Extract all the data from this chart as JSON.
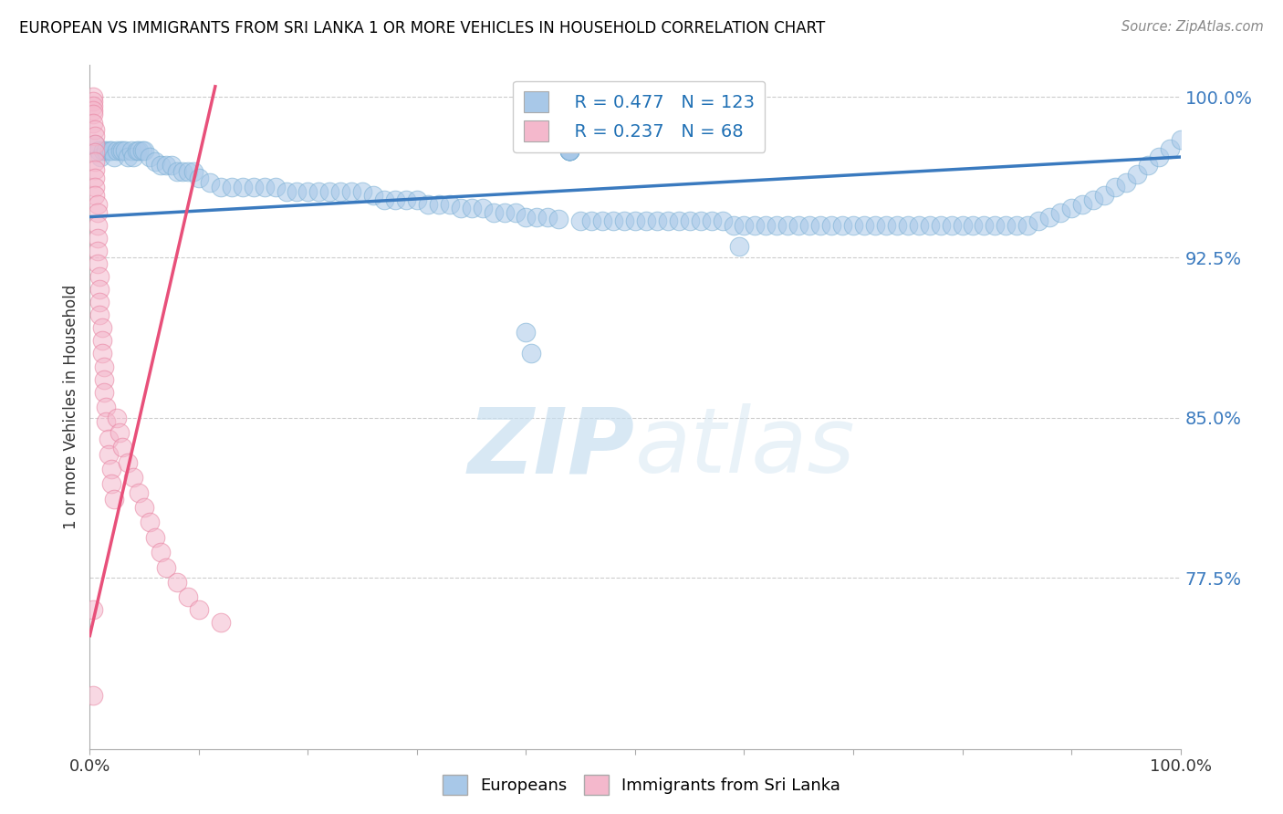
{
  "title": "EUROPEAN VS IMMIGRANTS FROM SRI LANKA 1 OR MORE VEHICLES IN HOUSEHOLD CORRELATION CHART",
  "source": "Source: ZipAtlas.com",
  "ylabel": "1 or more Vehicles in Household",
  "xlim": [
    0.0,
    1.0
  ],
  "ylim": [
    0.695,
    1.015
  ],
  "yticks": [
    0.775,
    0.85,
    0.925,
    1.0
  ],
  "ytick_labels": [
    "77.5%",
    "85.0%",
    "92.5%",
    "100.0%"
  ],
  "xtick_positions": [
    0.0,
    0.1,
    0.2,
    0.3,
    0.4,
    0.5,
    0.6,
    0.7,
    0.8,
    0.9,
    1.0
  ],
  "xtick_labels": [
    "0.0%",
    "",
    "",
    "",
    "",
    "",
    "",
    "",
    "",
    "",
    "100.0%"
  ],
  "legend_blue_r": "R = 0.477",
  "legend_blue_n": "N = 123",
  "legend_pink_r": "R = 0.237",
  "legend_pink_n": "N = 68",
  "legend_label_blue": "Europeans",
  "legend_label_pink": "Immigrants from Sri Lanka",
  "watermark_zip": "ZIP",
  "watermark_atlas": "atlas",
  "blue_color": "#a8c8e8",
  "blue_edge_color": "#7aafd4",
  "pink_color": "#f4b8cc",
  "pink_edge_color": "#e882a0",
  "blue_line_color": "#3a7abf",
  "pink_line_color": "#e8507a",
  "blue_scatter_x": [
    0.005,
    0.008,
    0.01,
    0.012,
    0.015,
    0.018,
    0.02,
    0.022,
    0.025,
    0.028,
    0.03,
    0.032,
    0.035,
    0.038,
    0.04,
    0.043,
    0.045,
    0.048,
    0.05,
    0.055,
    0.06,
    0.065,
    0.07,
    0.075,
    0.08,
    0.085,
    0.09,
    0.095,
    0.1,
    0.11,
    0.12,
    0.13,
    0.14,
    0.15,
    0.16,
    0.17,
    0.18,
    0.19,
    0.2,
    0.21,
    0.22,
    0.23,
    0.24,
    0.25,
    0.26,
    0.27,
    0.28,
    0.29,
    0.3,
    0.31,
    0.32,
    0.33,
    0.34,
    0.35,
    0.36,
    0.37,
    0.38,
    0.39,
    0.4,
    0.41,
    0.42,
    0.43,
    0.44,
    0.44,
    0.44,
    0.44,
    0.44,
    0.44,
    0.44,
    0.44,
    0.45,
    0.46,
    0.47,
    0.48,
    0.49,
    0.5,
    0.51,
    0.52,
    0.53,
    0.54,
    0.55,
    0.56,
    0.57,
    0.58,
    0.59,
    0.6,
    0.61,
    0.62,
    0.63,
    0.64,
    0.65,
    0.66,
    0.67,
    0.68,
    0.69,
    0.7,
    0.71,
    0.72,
    0.73,
    0.74,
    0.75,
    0.76,
    0.77,
    0.78,
    0.79,
    0.8,
    0.81,
    0.82,
    0.83,
    0.84,
    0.85,
    0.86,
    0.87,
    0.88,
    0.89,
    0.9,
    0.91,
    0.92,
    0.93,
    0.94,
    0.95,
    0.96,
    0.97,
    0.98,
    0.99,
    1.0,
    0.595,
    0.4,
    0.405
  ],
  "blue_scatter_y": [
    0.978,
    0.975,
    0.972,
    0.975,
    0.975,
    0.975,
    0.975,
    0.972,
    0.975,
    0.975,
    0.975,
    0.975,
    0.972,
    0.975,
    0.972,
    0.975,
    0.975,
    0.975,
    0.975,
    0.972,
    0.97,
    0.968,
    0.968,
    0.968,
    0.965,
    0.965,
    0.965,
    0.965,
    0.962,
    0.96,
    0.958,
    0.958,
    0.958,
    0.958,
    0.958,
    0.958,
    0.956,
    0.956,
    0.956,
    0.956,
    0.956,
    0.956,
    0.956,
    0.956,
    0.954,
    0.952,
    0.952,
    0.952,
    0.952,
    0.95,
    0.95,
    0.95,
    0.948,
    0.948,
    0.948,
    0.946,
    0.946,
    0.946,
    0.944,
    0.944,
    0.944,
    0.943,
    0.975,
    0.975,
    0.975,
    0.975,
    0.975,
    0.975,
    0.975,
    0.975,
    0.942,
    0.942,
    0.942,
    0.942,
    0.942,
    0.942,
    0.942,
    0.942,
    0.942,
    0.942,
    0.942,
    0.942,
    0.942,
    0.942,
    0.94,
    0.94,
    0.94,
    0.94,
    0.94,
    0.94,
    0.94,
    0.94,
    0.94,
    0.94,
    0.94,
    0.94,
    0.94,
    0.94,
    0.94,
    0.94,
    0.94,
    0.94,
    0.94,
    0.94,
    0.94,
    0.94,
    0.94,
    0.94,
    0.94,
    0.94,
    0.94,
    0.94,
    0.942,
    0.944,
    0.946,
    0.948,
    0.95,
    0.952,
    0.954,
    0.958,
    0.96,
    0.964,
    0.968,
    0.972,
    0.976,
    0.98,
    0.93,
    0.89,
    0.88
  ],
  "pink_scatter_x": [
    0.003,
    0.003,
    0.003,
    0.003,
    0.003,
    0.003,
    0.005,
    0.005,
    0.005,
    0.005,
    0.005,
    0.005,
    0.005,
    0.005,
    0.005,
    0.007,
    0.007,
    0.007,
    0.007,
    0.007,
    0.007,
    0.009,
    0.009,
    0.009,
    0.009,
    0.011,
    0.011,
    0.011,
    0.013,
    0.013,
    0.013,
    0.015,
    0.015,
    0.017,
    0.017,
    0.02,
    0.02,
    0.022,
    0.025,
    0.027,
    0.03,
    0.035,
    0.04,
    0.045,
    0.05,
    0.055,
    0.06,
    0.065,
    0.07,
    0.08,
    0.09,
    0.1,
    0.12,
    0.003,
    0.003
  ],
  "pink_scatter_y": [
    1.0,
    0.998,
    0.996,
    0.994,
    0.992,
    0.988,
    0.985,
    0.982,
    0.978,
    0.974,
    0.97,
    0.966,
    0.962,
    0.958,
    0.954,
    0.95,
    0.946,
    0.94,
    0.934,
    0.928,
    0.922,
    0.916,
    0.91,
    0.904,
    0.898,
    0.892,
    0.886,
    0.88,
    0.874,
    0.868,
    0.862,
    0.855,
    0.848,
    0.84,
    0.833,
    0.826,
    0.819,
    0.812,
    0.85,
    0.843,
    0.836,
    0.829,
    0.822,
    0.815,
    0.808,
    0.801,
    0.794,
    0.787,
    0.78,
    0.773,
    0.766,
    0.76,
    0.754,
    0.76,
    0.72
  ],
  "blue_trendline_x": [
    0.0,
    1.0
  ],
  "blue_trendline_y": [
    0.944,
    0.972
  ],
  "pink_trendline_x": [
    0.0,
    0.115
  ],
  "pink_trendline_y": [
    0.748,
    1.005
  ]
}
